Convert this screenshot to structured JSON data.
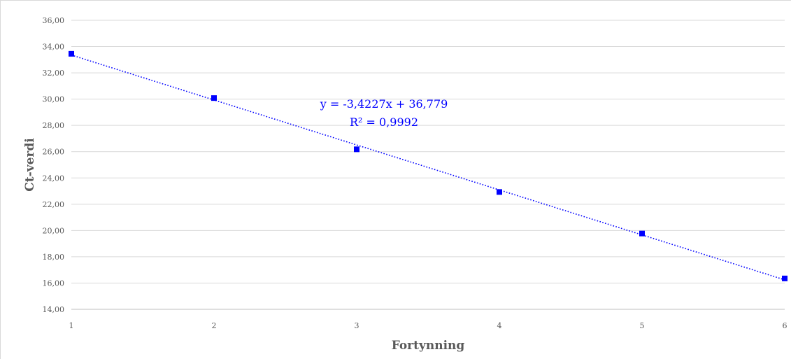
{
  "chart_data": {
    "type": "scatter",
    "title": "",
    "xlabel": "Fortynning",
    "ylabel": "Ct-verdi",
    "xlim": [
      1,
      6
    ],
    "ylim": [
      14,
      36
    ],
    "x_ticks": [
      "1",
      "2",
      "3",
      "4",
      "5",
      "6"
    ],
    "y_ticks": [
      "14,00",
      "16,00",
      "18,00",
      "20,00",
      "22,00",
      "24,00",
      "26,00",
      "28,00",
      "30,00",
      "32,00",
      "34,00",
      "36,00"
    ],
    "series": [
      {
        "x": [
          1,
          2,
          3,
          4,
          5,
          6
        ],
        "y": [
          33.45,
          30.08,
          26.18,
          22.93,
          19.77,
          16.35
        ],
        "color": "#0000ff",
        "marker": "square"
      }
    ],
    "trendline": {
      "type": "linear",
      "slope": -3.4227,
      "intercept": 36.779,
      "equation_label": "y = -3,4227x + 36,779",
      "r2_label": "R² = 0,9992",
      "color": "#0000ff",
      "style": "dotted"
    },
    "grid": {
      "horizontal": true,
      "vertical": false,
      "color": "#d9d9d9"
    }
  }
}
